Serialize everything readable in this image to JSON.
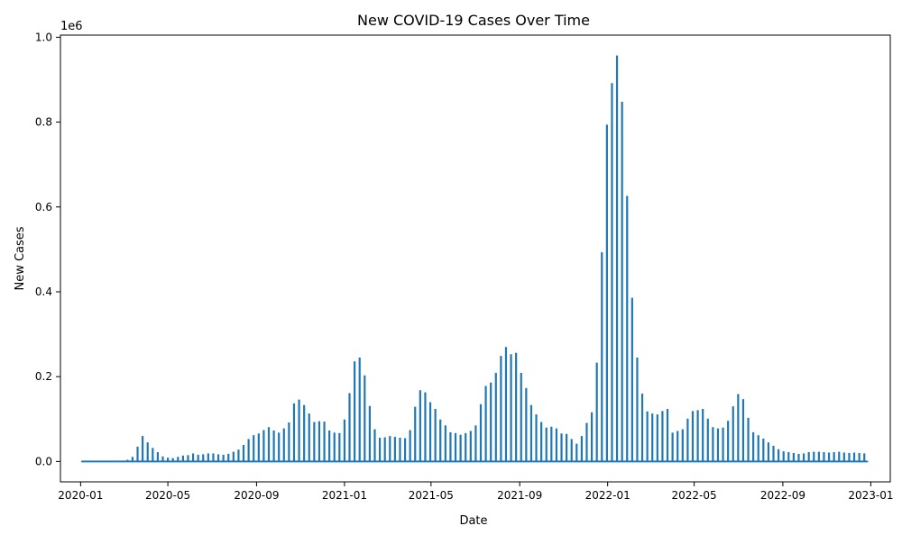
{
  "chart_data": {
    "type": "line",
    "title": "New COVID-19 Cases Over Time",
    "xlabel": "Date",
    "ylabel": "New Cases",
    "y_scale_label": "1e6",
    "xlim": [
      "2019-12-04",
      "2023-01-28"
    ],
    "ylim": [
      -0.048,
      1.005
    ],
    "y_unit_multiplier": 1000000,
    "x_ticks": [
      "2020-01",
      "2020-05",
      "2020-09",
      "2021-01",
      "2021-05",
      "2021-09",
      "2022-01",
      "2022-05",
      "2022-09",
      "2023-01"
    ],
    "y_ticks": [
      "0.0",
      "0.2",
      "0.4",
      "0.6",
      "0.8",
      "1.0"
    ],
    "y_tick_values": [
      0,
      0.2,
      0.4,
      0.6,
      0.8,
      1.0
    ],
    "grid": false,
    "legend": "none",
    "pattern_note": "daily series: value spikes on one day per week, zero on other days",
    "series": [
      {
        "color": "#1f77b4",
        "points": [
          [
            "2020-01-03",
            0.001
          ],
          [
            "2020-01-10",
            0.001
          ],
          [
            "2020-01-17",
            0.001
          ],
          [
            "2020-01-24",
            0.001
          ],
          [
            "2020-01-31",
            0.001
          ],
          [
            "2020-02-07",
            0.001
          ],
          [
            "2020-02-14",
            0.001
          ],
          [
            "2020-02-21",
            0.001
          ],
          [
            "2020-02-28",
            0.001
          ],
          [
            "2020-03-06",
            0.004
          ],
          [
            "2020-03-13",
            0.011
          ],
          [
            "2020-03-20",
            0.035
          ],
          [
            "2020-03-27",
            0.06
          ],
          [
            "2020-04-03",
            0.045
          ],
          [
            "2020-04-10",
            0.032
          ],
          [
            "2020-04-17",
            0.022
          ],
          [
            "2020-04-24",
            0.012
          ],
          [
            "2020-05-01",
            0.009
          ],
          [
            "2020-05-08",
            0.008
          ],
          [
            "2020-05-15",
            0.011
          ],
          [
            "2020-05-22",
            0.014
          ],
          [
            "2020-05-29",
            0.015
          ],
          [
            "2020-06-05",
            0.019
          ],
          [
            "2020-06-12",
            0.016
          ],
          [
            "2020-06-19",
            0.017
          ],
          [
            "2020-06-26",
            0.019
          ],
          [
            "2020-07-03",
            0.019
          ],
          [
            "2020-07-10",
            0.017
          ],
          [
            "2020-07-17",
            0.016
          ],
          [
            "2020-07-24",
            0.018
          ],
          [
            "2020-07-31",
            0.023
          ],
          [
            "2020-08-07",
            0.028
          ],
          [
            "2020-08-14",
            0.039
          ],
          [
            "2020-08-21",
            0.053
          ],
          [
            "2020-08-28",
            0.062
          ],
          [
            "2020-09-04",
            0.066
          ],
          [
            "2020-09-11",
            0.074
          ],
          [
            "2020-09-18",
            0.081
          ],
          [
            "2020-09-25",
            0.073
          ],
          [
            "2020-10-02",
            0.068
          ],
          [
            "2020-10-09",
            0.078
          ],
          [
            "2020-10-16",
            0.092
          ],
          [
            "2020-10-23",
            0.137
          ],
          [
            "2020-10-30",
            0.146
          ],
          [
            "2020-11-06",
            0.133
          ],
          [
            "2020-11-13",
            0.113
          ],
          [
            "2020-11-20",
            0.093
          ],
          [
            "2020-11-27",
            0.095
          ],
          [
            "2020-12-04",
            0.094
          ],
          [
            "2020-12-11",
            0.073
          ],
          [
            "2020-12-18",
            0.068
          ],
          [
            "2020-12-25",
            0.067
          ],
          [
            "2021-01-01",
            0.099
          ],
          [
            "2021-01-08",
            0.161
          ],
          [
            "2021-01-15",
            0.236
          ],
          [
            "2021-01-22",
            0.245
          ],
          [
            "2021-01-29",
            0.203
          ],
          [
            "2021-02-05",
            0.131
          ],
          [
            "2021-02-12",
            0.076
          ],
          [
            "2021-02-19",
            0.056
          ],
          [
            "2021-02-26",
            0.057
          ],
          [
            "2021-03-05",
            0.06
          ],
          [
            "2021-03-12",
            0.058
          ],
          [
            "2021-03-19",
            0.056
          ],
          [
            "2021-03-26",
            0.055
          ],
          [
            "2021-04-02",
            0.074
          ],
          [
            "2021-04-09",
            0.129
          ],
          [
            "2021-04-16",
            0.168
          ],
          [
            "2021-04-23",
            0.163
          ],
          [
            "2021-04-30",
            0.14
          ],
          [
            "2021-05-07",
            0.124
          ],
          [
            "2021-05-14",
            0.099
          ],
          [
            "2021-05-21",
            0.085
          ],
          [
            "2021-05-28",
            0.069
          ],
          [
            "2021-06-04",
            0.067
          ],
          [
            "2021-06-11",
            0.063
          ],
          [
            "2021-06-18",
            0.067
          ],
          [
            "2021-06-25",
            0.072
          ],
          [
            "2021-07-02",
            0.085
          ],
          [
            "2021-07-09",
            0.135
          ],
          [
            "2021-07-16",
            0.178
          ],
          [
            "2021-07-23",
            0.186
          ],
          [
            "2021-07-30",
            0.209
          ],
          [
            "2021-08-06",
            0.249
          ],
          [
            "2021-08-13",
            0.27
          ],
          [
            "2021-08-20",
            0.253
          ],
          [
            "2021-08-27",
            0.256
          ],
          [
            "2021-09-03",
            0.209
          ],
          [
            "2021-09-10",
            0.173
          ],
          [
            "2021-09-17",
            0.133
          ],
          [
            "2021-09-24",
            0.111
          ],
          [
            "2021-10-01",
            0.093
          ],
          [
            "2021-10-08",
            0.08
          ],
          [
            "2021-10-15",
            0.082
          ],
          [
            "2021-10-22",
            0.078
          ],
          [
            "2021-10-29",
            0.066
          ],
          [
            "2021-11-05",
            0.065
          ],
          [
            "2021-11-12",
            0.053
          ],
          [
            "2021-11-19",
            0.042
          ],
          [
            "2021-11-26",
            0.06
          ],
          [
            "2021-12-03",
            0.091
          ],
          [
            "2021-12-10",
            0.116
          ],
          [
            "2021-12-17",
            0.233
          ],
          [
            "2021-12-24",
            0.493
          ],
          [
            "2021-12-31",
            0.794
          ],
          [
            "2022-01-07",
            0.892
          ],
          [
            "2022-01-14",
            0.957
          ],
          [
            "2022-01-21",
            0.848
          ],
          [
            "2022-01-28",
            0.626
          ],
          [
            "2022-02-04",
            0.386
          ],
          [
            "2022-02-11",
            0.245
          ],
          [
            "2022-02-18",
            0.16
          ],
          [
            "2022-02-25",
            0.118
          ],
          [
            "2022-03-04",
            0.113
          ],
          [
            "2022-03-11",
            0.111
          ],
          [
            "2022-03-18",
            0.119
          ],
          [
            "2022-03-25",
            0.124
          ],
          [
            "2022-04-01",
            0.068
          ],
          [
            "2022-04-08",
            0.072
          ],
          [
            "2022-04-15",
            0.076
          ],
          [
            "2022-04-22",
            0.101
          ],
          [
            "2022-04-29",
            0.119
          ],
          [
            "2022-05-06",
            0.121
          ],
          [
            "2022-05-13",
            0.124
          ],
          [
            "2022-05-20",
            0.101
          ],
          [
            "2022-05-27",
            0.081
          ],
          [
            "2022-06-03",
            0.078
          ],
          [
            "2022-06-10",
            0.08
          ],
          [
            "2022-06-17",
            0.096
          ],
          [
            "2022-06-24",
            0.13
          ],
          [
            "2022-07-01",
            0.159
          ],
          [
            "2022-07-08",
            0.147
          ],
          [
            "2022-07-15",
            0.103
          ],
          [
            "2022-07-22",
            0.069
          ],
          [
            "2022-07-29",
            0.062
          ],
          [
            "2022-08-05",
            0.054
          ],
          [
            "2022-08-12",
            0.045
          ],
          [
            "2022-08-19",
            0.037
          ],
          [
            "2022-08-26",
            0.029
          ],
          [
            "2022-09-02",
            0.024
          ],
          [
            "2022-09-09",
            0.022
          ],
          [
            "2022-09-16",
            0.02
          ],
          [
            "2022-09-23",
            0.018
          ],
          [
            "2022-09-30",
            0.019
          ],
          [
            "2022-10-07",
            0.022
          ],
          [
            "2022-10-14",
            0.023
          ],
          [
            "2022-10-21",
            0.023
          ],
          [
            "2022-10-28",
            0.022
          ],
          [
            "2022-11-04",
            0.021
          ],
          [
            "2022-11-11",
            0.022
          ],
          [
            "2022-11-18",
            0.023
          ],
          [
            "2022-11-25",
            0.021
          ],
          [
            "2022-12-02",
            0.02
          ],
          [
            "2022-12-09",
            0.021
          ],
          [
            "2022-12-16",
            0.02
          ],
          [
            "2022-12-23",
            0.019
          ],
          [
            "2022-12-27",
            0.001
          ]
        ]
      }
    ]
  }
}
